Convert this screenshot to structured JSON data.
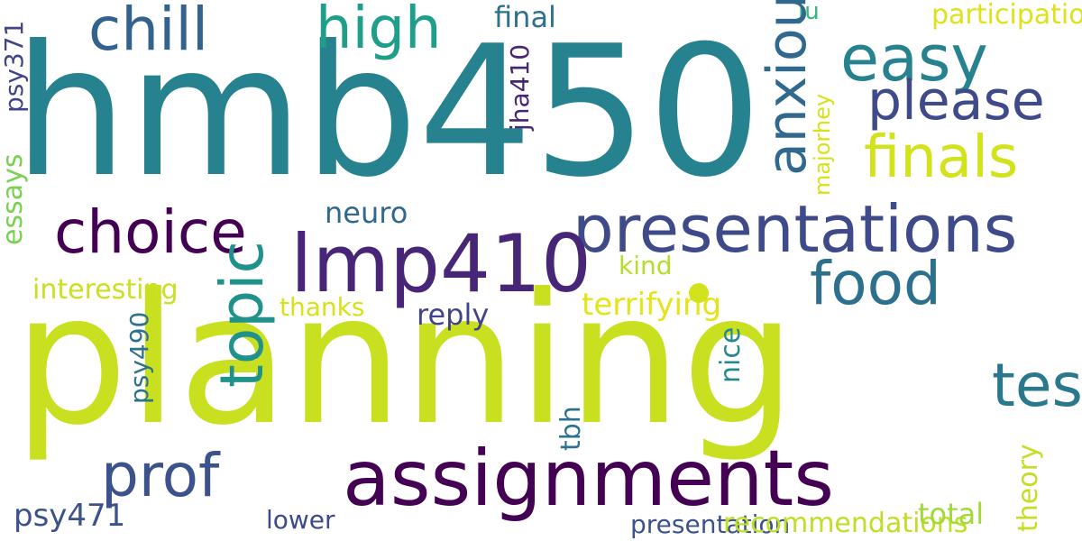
{
  "words": [
    {
      "text": "planning",
      "color": "#c8e020"
    },
    {
      "text": "hmb450",
      "color": "#26828e"
    },
    {
      "text": "assignments",
      "color": "#440154"
    },
    {
      "text": "presentations",
      "color": "#3e4a89"
    },
    {
      "text": "lmp410",
      "color": "#482677"
    },
    {
      "text": "chill",
      "color": "#33638d"
    },
    {
      "text": "high",
      "color": "#1f9e89"
    },
    {
      "text": "easy",
      "color": "#26828e"
    },
    {
      "text": "please",
      "color": "#3e4a89"
    },
    {
      "text": "finals",
      "color": "#d2e21b"
    },
    {
      "text": "food",
      "color": "#2d708e"
    },
    {
      "text": "choice",
      "color": "#440154"
    },
    {
      "text": "prof",
      "color": "#3b528b"
    },
    {
      "text": "tests",
      "color": "#2a788e"
    },
    {
      "text": "final",
      "color": "#2c728e"
    },
    {
      "text": "ju",
      "color": "#35b779"
    },
    {
      "text": "participation",
      "color": "#dde318"
    },
    {
      "text": "neuro",
      "color": "#31688e"
    },
    {
      "text": "kind",
      "color": "#b5de2b"
    },
    {
      "text": "interesting",
      "color": "#cae11f"
    },
    {
      "text": "terrifying",
      "color": "#e5e419"
    },
    {
      "text": "thanks",
      "color": "#d8e219"
    },
    {
      "text": "reply",
      "color": "#414487"
    },
    {
      "text": "psy471",
      "color": "#3b528b"
    },
    {
      "text": "lower",
      "color": "#3e4989"
    },
    {
      "text": "presentation",
      "color": "#3b528b"
    },
    {
      "text": "recommendations",
      "color": "#bddf26"
    },
    {
      "text": "total",
      "color": "#a0da39"
    },
    {
      "text": "anxious",
      "color": "#31688e"
    },
    {
      "text": "topic",
      "color": "#21918c"
    },
    {
      "text": "theory",
      "color": "#c2df23"
    },
    {
      "text": "tbh",
      "color": "#2c728e"
    },
    {
      "text": "nice",
      "color": "#23898e"
    },
    {
      "text": "psy490",
      "color": "#2c728e"
    },
    {
      "text": "jha410",
      "color": "#482475"
    },
    {
      "text": "majorhey",
      "color": "#d8e219"
    },
    {
      "text": "essays",
      "color": "#7ad151"
    },
    {
      "text": "psy371",
      "color": "#414487"
    }
  ]
}
